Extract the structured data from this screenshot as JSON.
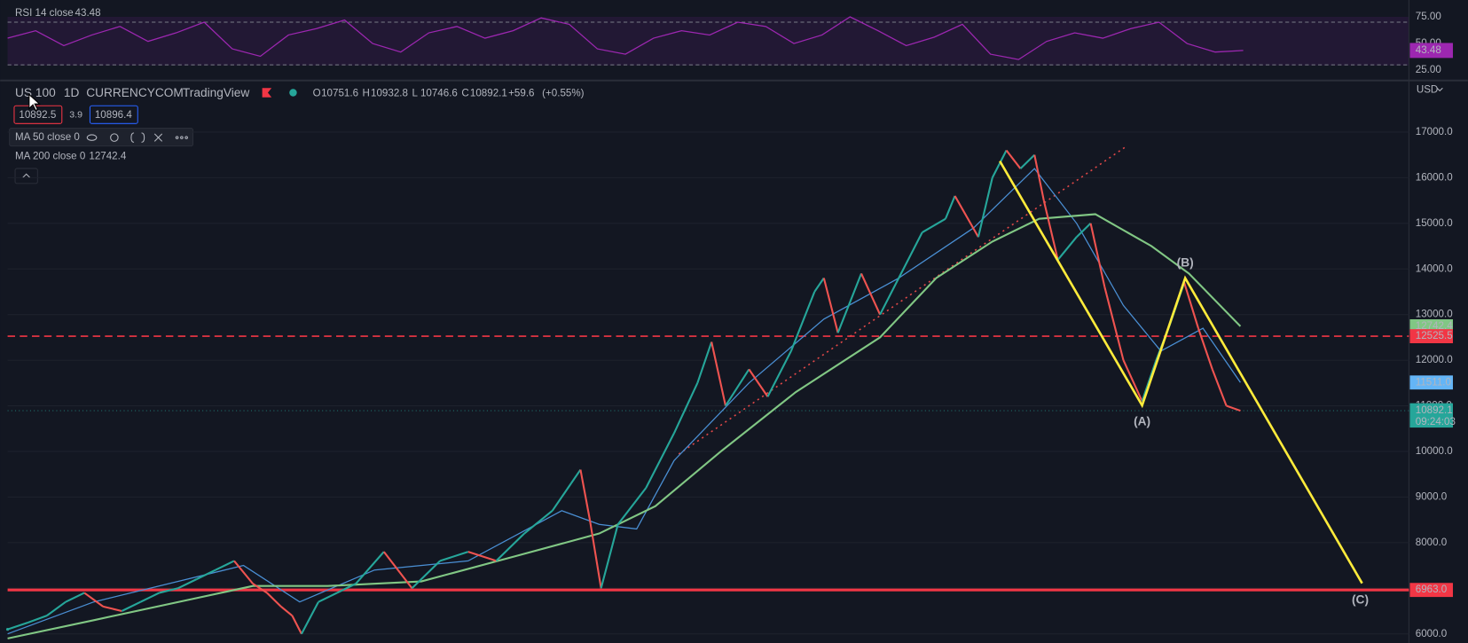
{
  "header": {
    "symbol": "US 100",
    "interval": "1D",
    "source": "CURRENCYCOM",
    "platform": "TradingView",
    "ohlc": [
      {
        "label": "O",
        "value": 10751.6
      },
      {
        "label": "H",
        "value": 10932.8
      },
      {
        "label": "L",
        "value": 10746.6
      },
      {
        "label": "C",
        "value": 10892.1
      }
    ],
    "change": "+59.6",
    "change_pct": "(+0.55%)",
    "bid": 10892.5,
    "spread": 3.9,
    "ask": 10896.4
  },
  "chart_data": {
    "type": "candlestick",
    "unit": "USD",
    "x": [
      0,
      22,
      42,
      62,
      82,
      102,
      122,
      142,
      162,
      182,
      202,
      222,
      242,
      262,
      277,
      292,
      304,
      314,
      332,
      352,
      372,
      402,
      432,
      462,
      492,
      522,
      552,
      582,
      602,
      612,
      622,
      634,
      652,
      682,
      712,
      737,
      752,
      767,
      792,
      812,
      837,
      862,
      872,
      887,
      912,
      932,
      952,
      977,
      1002,
      1012,
      1037,
      1052,
      1067,
      1082,
      1097,
      1107,
      1122,
      1142,
      1157,
      1172,
      1192,
      1212,
      1227,
      1242,
      1257,
      1272,
      1287,
      1302,
      1317
    ],
    "close": [
      6100,
      6250,
      6400,
      6700,
      6900,
      6600,
      6500,
      6700,
      6900,
      7000,
      7200,
      7400,
      7600,
      7100,
      6900,
      6600,
      6400,
      6000,
      6700,
      6900,
      7100,
      7800,
      7000,
      7600,
      7800,
      7600,
      8200,
      8700,
      9300,
      9600,
      8500,
      7000,
      8400,
      9200,
      10400,
      11500,
      12400,
      11000,
      11800,
      11200,
      12200,
      13500,
      13800,
      12600,
      13900,
      13000,
      13800,
      14800,
      15100,
      15600,
      14700,
      16000,
      16600,
      16200,
      16500,
      15500,
      14200,
      14700,
      15000,
      13600,
      12000,
      11100,
      12000,
      12800,
      13700,
      12700,
      11800,
      11000,
      10892.1
    ],
    "up_color": "#26a69a",
    "down_color": "#ef5350",
    "series": [
      {
        "name": "MA 50 close 0",
        "color": "#4a8fd4",
        "tag_color": "#64b5f6",
        "x": [
          0,
          92,
          252,
          312,
          392,
          492,
          592,
          632,
          672,
          712,
          792,
          872,
          952,
          1032,
          1097,
          1142,
          1192,
          1232,
          1277,
          1317
        ],
        "values": [
          6000,
          6700,
          7500,
          6700,
          7400,
          7600,
          8700,
          8400,
          8300,
          9800,
          11500,
          12900,
          13800,
          14900,
          16200,
          15000,
          13200,
          12200,
          12700,
          11511
        ],
        "last_label": "11511.0"
      },
      {
        "name": "MA 200 close 0",
        "color": "#81c784",
        "tag_color": "#81c784",
        "x": [
          0,
          92,
          262,
          342,
          442,
          542,
          632,
          692,
          762,
          842,
          932,
          992,
          1052,
          1102,
          1162,
          1222,
          1262,
          1317
        ],
        "values": [
          5900,
          6300,
          7050,
          7050,
          7150,
          7700,
          8200,
          8800,
          10000,
          11300,
          12500,
          13800,
          14600,
          15100,
          15200,
          14500,
          13900,
          12742.4
        ],
        "last_label": 12742.4
      }
    ],
    "xlim": [
      0,
      1497
    ],
    "ylim": [
      5800,
      18090
    ],
    "yticks": [
      {
        "value": 6000,
        "label": "6000.0"
      },
      {
        "value": 7000,
        "label": "7000.0"
      },
      {
        "value": 8000,
        "label": "8000.0"
      },
      {
        "value": 9000,
        "label": "9000.0"
      },
      {
        "value": 10000,
        "label": "10000.0"
      },
      {
        "value": 11000,
        "label": "11000.0"
      },
      {
        "value": 12000,
        "label": "12000.0"
      },
      {
        "value": 13000,
        "label": "13000.0"
      },
      {
        "value": 14000,
        "label": "14000.0"
      },
      {
        "value": 15000,
        "label": "15000.0"
      },
      {
        "value": 16000,
        "label": "16000.0"
      },
      {
        "value": 17000,
        "label": "17000.0"
      }
    ],
    "grid": true,
    "current": {
      "value": 10892.1,
      "countdown": "09:24:03",
      "color": "#26a69a"
    },
    "levels": [
      {
        "value": 12525.5,
        "style": "dashed",
        "color": "#f23645"
      },
      {
        "value": 6963,
        "label": "6963.0",
        "style": "solid",
        "color": "#f23645"
      }
    ],
    "trendline": {
      "x": [
        717,
        1194
      ],
      "values": [
        9941,
        16672
      ],
      "color": "#e04848"
    },
    "waves": {
      "x": [
        1060,
        1212,
        1258,
        1447
      ],
      "values": [
        16364,
        11008,
        13799,
        7109
      ],
      "labels": [
        null,
        "(A)",
        "(B)",
        "(C)"
      ],
      "color": "#ffeb3b"
    }
  },
  "rsi": {
    "title": "RSI 14 close",
    "value": 43.48,
    "color": "#9c27b0",
    "x": [
      0,
      30,
      60,
      90,
      120,
      150,
      180,
      210,
      240,
      270,
      300,
      330,
      360,
      390,
      420,
      450,
      480,
      510,
      540,
      570,
      600,
      630,
      660,
      690,
      720,
      750,
      780,
      810,
      840,
      870,
      900,
      930,
      960,
      990,
      1020,
      1050,
      1080,
      1110,
      1140,
      1170,
      1200,
      1230,
      1260,
      1290,
      1320
    ],
    "values": [
      55,
      62,
      48,
      58,
      66,
      52,
      60,
      70,
      45,
      38,
      58,
      64,
      72,
      50,
      42,
      60,
      66,
      55,
      62,
      74,
      68,
      45,
      40,
      55,
      62,
      58,
      70,
      66,
      50,
      58,
      75,
      62,
      48,
      56,
      68,
      40,
      35,
      52,
      60,
      55,
      64,
      70,
      50,
      42,
      43.48
    ],
    "ylim": [
      16.2,
      90.8
    ],
    "yticks": [
      {
        "value": 25,
        "label": "25.00"
      },
      {
        "value": 50,
        "label": "50.00"
      },
      {
        "value": 75,
        "label": "75.00"
      }
    ],
    "bands": [
      30,
      70
    ]
  }
}
